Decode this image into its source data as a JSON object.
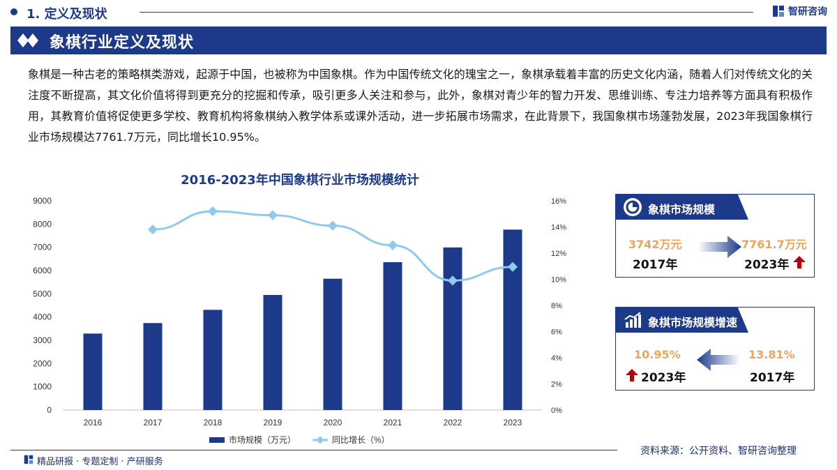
{
  "header": {
    "section_title": "1. 定义及现状",
    "brand": "智研咨询"
  },
  "banner": {
    "title": "象棋行业定义及现状"
  },
  "intro": "象棋是一种古老的策略棋类游戏，起源于中国，也被称为中国象棋。作为中国传统文化的瑰宝之一，象棋承载着丰富的历史文化内涵，随着人们对传统文化的关注度不断提高，其文化价值将得到更充分的挖掘和传承，吸引更多人关注和参与，此外，象棋对青少年的智力开发、思维训练、专注力培养等方面具有积极作用，其教育价值将促使更多学校、教育机构将象棋纳入教学体系或课外活动，进一步拓展市场需求，在此背景下，我国象棋市场蓬勃发展，2023年我国象棋行业市场规模达7761.7万元，同比增长10.95%。",
  "chart_data": {
    "type": "bar",
    "title": "2016-2023年中国象棋行业市场规模统计",
    "categories": [
      "2016",
      "2017",
      "2018",
      "2019",
      "2020",
      "2021",
      "2022",
      "2023"
    ],
    "series": [
      {
        "name": "市场规模（万元）",
        "type": "bar",
        "axis": "left",
        "color": "#1d3a8a",
        "values": [
          3290,
          3742,
          4310,
          4950,
          5650,
          6360,
          6995,
          7761.7
        ]
      },
      {
        "name": "同比增长（%）",
        "type": "line",
        "axis": "right",
        "color": "#8fc9ee",
        "values": [
          null,
          13.81,
          15.2,
          14.9,
          14.1,
          12.6,
          9.9,
          10.95
        ]
      }
    ],
    "y_left": {
      "min": 0,
      "max": 9000,
      "step": 1000,
      "ticks": [
        "0",
        "1000",
        "2000",
        "3000",
        "4000",
        "5000",
        "6000",
        "7000",
        "8000",
        "9000"
      ]
    },
    "y_right": {
      "min": 0,
      "max": 16,
      "step": 2,
      "ticks": [
        "0%",
        "2%",
        "4%",
        "6%",
        "8%",
        "10%",
        "12%",
        "14%",
        "16%"
      ]
    },
    "grid": false,
    "legend": "bottom"
  },
  "cards": [
    {
      "title": "象棋市场规模",
      "icon": "pie-chart-icon",
      "left_value": "3742万元",
      "left_year": "2017年",
      "right_value": "7761.7万元",
      "right_year": "2023年",
      "arrow": "right-arrow-icon"
    },
    {
      "title": "象棋市场规模增速",
      "icon": "bar-trend-icon",
      "left_value": "10.95%",
      "left_year": "2023年",
      "right_value": "13.81%",
      "right_year": "2017年",
      "arrow": "left-arrow-icon"
    }
  ],
  "footer": {
    "source": "资料来源：公开资料、智研咨询整理",
    "tagline": "精品研报 · 专题定制 · 产研服务"
  },
  "colors": {
    "primary": "#1d3a8a",
    "line": "#8fc9ee",
    "accent_orange": "#f0a35a",
    "up_red": "#c00000"
  }
}
